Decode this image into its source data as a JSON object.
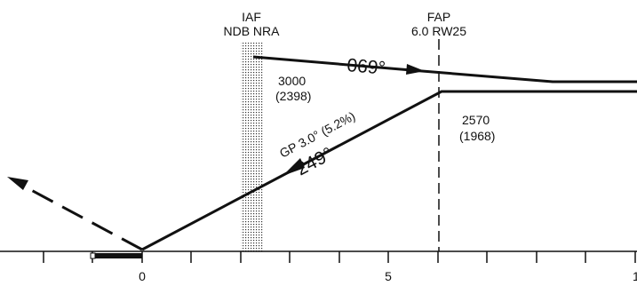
{
  "fixes": [
    {
      "name": "IAF",
      "sub": "NDB NRA"
    },
    {
      "name": "FAP",
      "sub": "6.0 RW25"
    }
  ],
  "inbound_course": "069°",
  "glide_path": "GP 3.0° (5.2%)",
  "final_course": "249°",
  "altitudes": [
    {
      "alt": "3000",
      "height": "(2398)"
    },
    {
      "alt": "2570",
      "height": "(1968)"
    }
  ],
  "scale_labels": [
    "0",
    "5",
    "1"
  ]
}
